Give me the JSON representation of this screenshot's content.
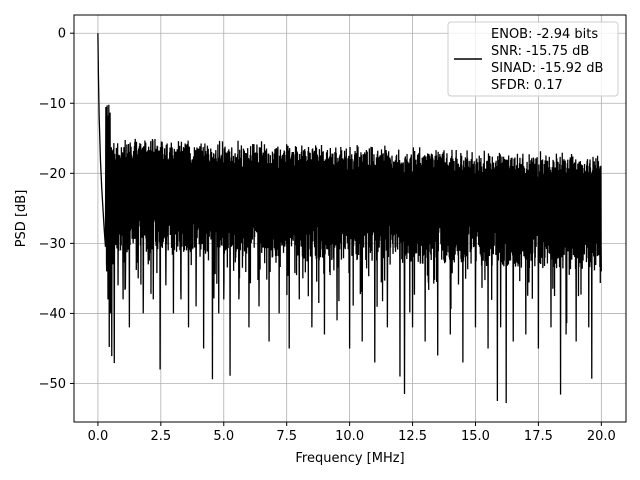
{
  "chart_data": {
    "type": "line",
    "title": "",
    "xlabel": "Frequency [MHz]",
    "ylabel": "PSD [dB]",
    "xlim": [
      -0.95,
      20.98
    ],
    "ylim": [
      -55.5,
      2.6
    ],
    "xticks": [
      0.0,
      2.5,
      5.0,
      7.5,
      10.0,
      12.5,
      15.0,
      17.5,
      20.0
    ],
    "xtick_labels": [
      "0.0",
      "2.5",
      "5.0",
      "7.5",
      "10.0",
      "12.5",
      "15.0",
      "17.5",
      "20.0"
    ],
    "yticks": [
      0,
      -10,
      -20,
      -30,
      -40,
      -50
    ],
    "ytick_labels": [
      "0",
      "−10",
      "−20",
      "−30",
      "−40",
      "−50"
    ],
    "grid": true,
    "legend_position": "top-right",
    "legend": [
      "ENOB: -2.94 bits",
      "SNR: -15.75 dB",
      "SINAD: -15.92 dB",
      "SFDR: 0.17"
    ],
    "series": [
      {
        "color": "#000000",
        "description": "noise-like power spectral density trace from 0 to 20 MHz; peak at 0 dB near 0 MHz, bulk band roughly -15 to -32 dB, deep dips to about -52.7 dB",
        "x": [
          0.0,
          0.02,
          0.05,
          0.1,
          0.15,
          0.2,
          0.25,
          0.3,
          0.35,
          0.4,
          0.45,
          0.5,
          0.55,
          0.6,
          0.65,
          0.7,
          0.8,
          0.9,
          1.0,
          1.1,
          1.25,
          1.4,
          1.6,
          1.8,
          2.0,
          2.2,
          2.47,
          2.7,
          3.0,
          3.3,
          3.6,
          3.9,
          4.2,
          4.55,
          4.8,
          5.0,
          5.25,
          5.6,
          6.0,
          6.4,
          6.8,
          7.2,
          7.6,
          8.0,
          8.5,
          9.0,
          9.5,
          10.0,
          10.5,
          11.0,
          11.5,
          12.0,
          12.18,
          12.5,
          13.0,
          13.5,
          14.0,
          14.5,
          15.0,
          15.5,
          15.87,
          16.0,
          16.22,
          16.5,
          17.0,
          17.5,
          18.0,
          18.38,
          18.6,
          19.0,
          19.5,
          19.62,
          20.0
        ],
        "y": [
          0.0,
          -6.0,
          -12.0,
          -18.0,
          -22.0,
          -25.0,
          -28.0,
          -30.5,
          -34.0,
          -38.0,
          -44.8,
          -40.0,
          -46.1,
          -33.0,
          -47.1,
          -30.0,
          -36.0,
          -31.0,
          -38.0,
          -33.0,
          -42.0,
          -30.0,
          -35.0,
          -40.0,
          -33.0,
          -38.0,
          -48.0,
          -36.0,
          -40.0,
          -38.0,
          -42.0,
          -39.0,
          -45.0,
          -49.4,
          -40.0,
          -38.0,
          -48.9,
          -38.0,
          -42.0,
          -39.0,
          -44.0,
          -40.0,
          -45.0,
          -38.0,
          -42.0,
          -43.0,
          -41.0,
          -45.0,
          -44.0,
          -47.0,
          -42.0,
          -49.0,
          -51.5,
          -42.0,
          -44.0,
          -46.0,
          -43.0,
          -47.0,
          -42.0,
          -45.0,
          -52.5,
          -42.0,
          -52.8,
          -44.0,
          -43.0,
          -45.0,
          -42.0,
          -51.6,
          -43.0,
          -44.0,
          -42.0,
          -49.3,
          -34.0
        ]
      }
    ]
  }
}
